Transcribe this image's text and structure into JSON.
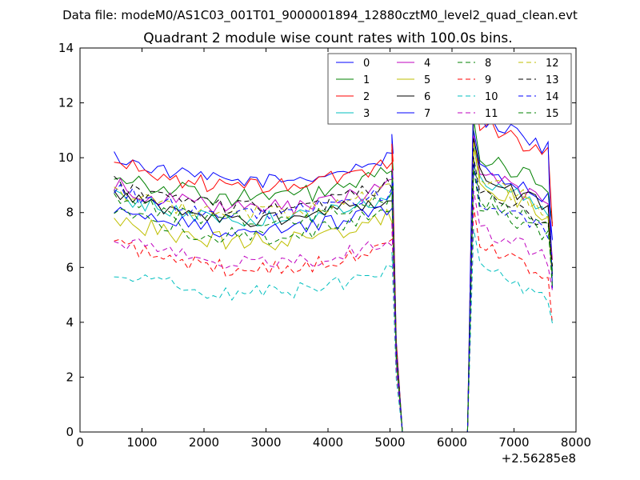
{
  "chart_data": {
    "type": "line",
    "suptitle": "Data file: modeM0/AS1C03_001T01_9000001894_12880cztM0_level2_quad_clean.evt",
    "title": "Quadrant 2 module wise count rates with 100.0s bins.",
    "xlabel": "",
    "ylabel": "",
    "x_offset_label": "+2.56285e8",
    "xlim": [
      0,
      8000
    ],
    "ylim": [
      0,
      14
    ],
    "xticks": [
      0,
      1000,
      2000,
      3000,
      4000,
      5000,
      6000,
      7000,
      8000
    ],
    "yticks": [
      0,
      2,
      4,
      6,
      8,
      10,
      12,
      14
    ],
    "grid": false,
    "legend_position": "top-right",
    "series": [
      {
        "name": "0",
        "color": "#0000ff",
        "dash": "solid",
        "base": 9.6,
        "peak": 11.0,
        "amp": 0.25
      },
      {
        "name": "1",
        "color": "#008000",
        "dash": "solid",
        "base": 9.0,
        "peak": 11.4,
        "amp": 0.35
      },
      {
        "name": "2",
        "color": "#ff0000",
        "dash": "solid",
        "base": 9.4,
        "peak": 12.6,
        "amp": 0.3
      },
      {
        "name": "3",
        "color": "#00bfbf",
        "dash": "solid",
        "base": 8.2,
        "peak": 10.6,
        "amp": 0.3
      },
      {
        "name": "4",
        "color": "#bf00bf",
        "dash": "solid",
        "base": 8.6,
        "peak": 10.8,
        "amp": 0.3
      },
      {
        "name": "5",
        "color": "#bfbf00",
        "dash": "solid",
        "base": 7.4,
        "peak": 10.4,
        "amp": 0.35
      },
      {
        "name": "6",
        "color": "#000000",
        "dash": "solid",
        "base": 8.2,
        "peak": 10.7,
        "amp": 0.3
      },
      {
        "name": "7",
        "color": "#0000ff",
        "dash": "solid",
        "base": 7.8,
        "peak": 12.8,
        "amp": 0.3
      },
      {
        "name": "8",
        "color": "#008000",
        "dash": "dashed",
        "base": 7.6,
        "peak": 9.9,
        "amp": 0.35
      },
      {
        "name": "9",
        "color": "#ff0000",
        "dash": "dashed",
        "base": 6.4,
        "peak": 8.2,
        "amp": 0.3
      },
      {
        "name": "10",
        "color": "#00bfbf",
        "dash": "dashed",
        "base": 5.5,
        "peak": 7.4,
        "amp": 0.3
      },
      {
        "name": "11",
        "color": "#bf00bf",
        "dash": "dashed",
        "base": 6.6,
        "peak": 8.8,
        "amp": 0.3
      },
      {
        "name": "12",
        "color": "#bfbf00",
        "dash": "dashed",
        "base": 8.4,
        "peak": 10.6,
        "amp": 0.3
      },
      {
        "name": "13",
        "color": "#000000",
        "dash": "dashed",
        "base": 8.6,
        "peak": 10.0,
        "amp": 0.3
      },
      {
        "name": "14",
        "color": "#0000ff",
        "dash": "dashed",
        "base": 8.4,
        "peak": 9.8,
        "amp": 0.3
      },
      {
        "name": "15",
        "color": "#008000",
        "dash": "dashed",
        "base": 8.2,
        "peak": 9.6,
        "amp": 0.3
      }
    ],
    "shape_notes": {
      "segment1_x": [
        550,
        5050
      ],
      "dip_start_x": 5050,
      "zero_range_x": [
        5200,
        6250
      ],
      "segment2_x": [
        6350,
        7650
      ]
    }
  }
}
